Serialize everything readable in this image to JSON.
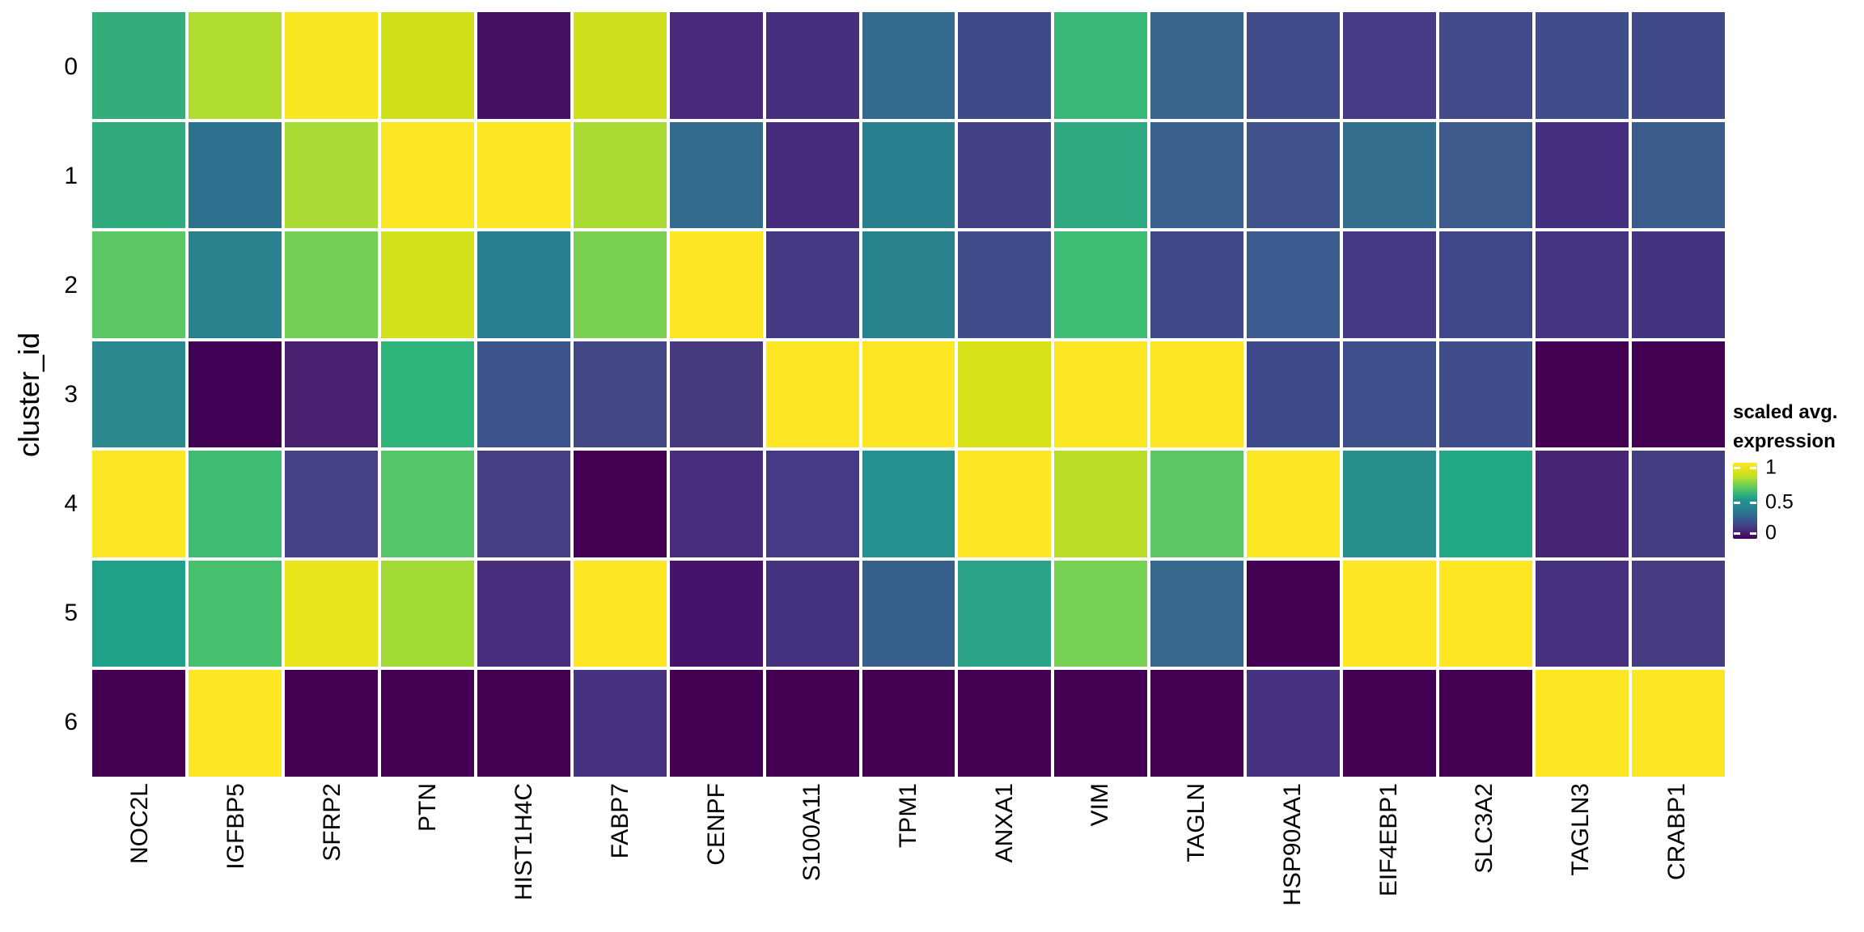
{
  "figure": {
    "background": "#ffffff",
    "type": "heatmap-figure"
  },
  "y_axis": {
    "title": "cluster_id",
    "tick_labels": [
      "0",
      "1",
      "2",
      "3",
      "4",
      "5",
      "6"
    ]
  },
  "x_axis": {
    "tick_labels": [
      "NOC2L",
      "IGFBP5",
      "SFRP2",
      "PTN",
      "HIST1H4C",
      "FABP7",
      "CENPF",
      "S100A11",
      "TPM1",
      "ANXA1",
      "VIM",
      "TAGLN",
      "HSP90AA1",
      "EIF4EBP1",
      "SLC3A2",
      "TAGLN3",
      "CRABP1"
    ]
  },
  "legend": {
    "title_line1": "scaled avg.",
    "title_line2": "expression",
    "ticks": [
      {
        "label": "1",
        "frac_from_top": 0.064
      },
      {
        "label": "0.5",
        "frac_from_top": 0.52
      },
      {
        "label": "0",
        "frac_from_top": 0.925
      }
    ],
    "gradient_stops_bottom_to_top": [
      {
        "t": 0.0,
        "color": "#440154"
      },
      {
        "t": 0.1,
        "color": "#482878"
      },
      {
        "t": 0.2,
        "color": "#3e4989"
      },
      {
        "t": 0.3,
        "color": "#31688e"
      },
      {
        "t": 0.4,
        "color": "#26828e"
      },
      {
        "t": 0.5,
        "color": "#21918c"
      },
      {
        "t": 0.6,
        "color": "#35b779"
      },
      {
        "t": 0.7,
        "color": "#6ece58"
      },
      {
        "t": 0.8,
        "color": "#b5de2b"
      },
      {
        "t": 0.9,
        "color": "#dde319"
      },
      {
        "t": 1.0,
        "color": "#fde725"
      }
    ]
  },
  "chart_data": {
    "type": "heatmap",
    "title": "",
    "xlabel": "",
    "ylabel": "cluster_id",
    "legend_title": "scaled avg. expression",
    "value_range": [
      0,
      1
    ],
    "colormap": "viridis",
    "x_categories": [
      "NOC2L",
      "IGFBP5",
      "SFRP2",
      "PTN",
      "HIST1H4C",
      "FABP7",
      "CENPF",
      "S100A11",
      "TPM1",
      "ANXA1",
      "VIM",
      "TAGLN",
      "HSP90AA1",
      "EIF4EBP1",
      "SLC3A2",
      "TAGLN3",
      "CRABP1"
    ],
    "y_categories": [
      "0",
      "1",
      "2",
      "3",
      "4",
      "5",
      "6"
    ],
    "values": [
      [
        0.58,
        0.8,
        0.97,
        0.87,
        0.03,
        0.86,
        0.11,
        0.12,
        0.34,
        0.21,
        0.6,
        0.31,
        0.22,
        0.16,
        0.21,
        0.23,
        0.21
      ],
      [
        0.57,
        0.35,
        0.78,
        0.99,
        1.0,
        0.78,
        0.34,
        0.11,
        0.39,
        0.18,
        0.55,
        0.3,
        0.24,
        0.36,
        0.28,
        0.11,
        0.29
      ],
      [
        0.68,
        0.4,
        0.72,
        0.88,
        0.39,
        0.73,
        1.0,
        0.16,
        0.4,
        0.22,
        0.62,
        0.21,
        0.28,
        0.16,
        0.2,
        0.13,
        0.13
      ],
      [
        0.42,
        0.0,
        0.08,
        0.58,
        0.25,
        0.19,
        0.15,
        1.0,
        1.0,
        0.9,
        1.0,
        1.0,
        0.2,
        0.23,
        0.22,
        0.0,
        0.0
      ],
      [
        1.0,
        0.62,
        0.18,
        0.66,
        0.17,
        0.0,
        0.11,
        0.17,
        0.47,
        1.0,
        0.82,
        0.68,
        1.0,
        0.44,
        0.52,
        0.09,
        0.17
      ],
      [
        0.52,
        0.64,
        0.93,
        0.77,
        0.11,
        1.0,
        0.05,
        0.13,
        0.31,
        0.53,
        0.73,
        0.33,
        0.0,
        1.0,
        1.0,
        0.12,
        0.16
      ],
      [
        0.0,
        1.0,
        0.0,
        0.0,
        0.0,
        0.12,
        0.0,
        0.0,
        0.0,
        0.0,
        0.0,
        0.0,
        0.12,
        0.0,
        0.0,
        1.0,
        1.0
      ]
    ],
    "cell_colors": [
      [
        "#35ac7c",
        "#b0dd2f",
        "#f8e621",
        "#d0e11c",
        "#451060",
        "#cfe11c",
        "#472a7a",
        "#46307e",
        "#336b8e",
        "#3e4a89",
        "#38b977",
        "#38648e",
        "#414c8a",
        "#453c85",
        "#424a89",
        "#3f4e8a",
        "#414a89"
      ],
      [
        "#31ab7d",
        "#2c728e",
        "#a8db34",
        "#fbe723",
        "#fde725",
        "#a9db33",
        "#336b8e",
        "#462c7c",
        "#2a7f8e",
        "#423f85",
        "#2fa982",
        "#3a608d",
        "#3f528b",
        "#34708d",
        "#3c5a8c",
        "#452f80",
        "#3a5c8d"
      ],
      [
        "#5cc863",
        "#28828d",
        "#74d055",
        "#d2e21b",
        "#2a7f8e",
        "#7ad151",
        "#fde725",
        "#443983",
        "#29838e",
        "#3f4e8a",
        "#3dbc74",
        "#3f4889",
        "#3b5c8f",
        "#443a83",
        "#404688",
        "#463480",
        "#44337e"
      ],
      [
        "#2a898e",
        "#420256",
        "#472070",
        "#2fb47c",
        "#3c538b",
        "#434685",
        "#46397e",
        "#fde725",
        "#fde725",
        "#d8e219",
        "#fde725",
        "#fde725",
        "#3e4989",
        "#3f4f8b",
        "#3f4d8a",
        "#440154",
        "#440154"
      ],
      [
        "#fce724",
        "#3fbc73",
        "#444187",
        "#54c568",
        "#453f84",
        "#440154",
        "#472d7b",
        "#443b84",
        "#259290",
        "#fde725",
        "#bade28",
        "#5cc863",
        "#fde725",
        "#298f8d",
        "#23a884",
        "#482475",
        "#433d84"
      ],
      [
        "#1fa088",
        "#48c16e",
        "#e8e419",
        "#a2db36",
        "#472f7d",
        "#fde725",
        "#46136a",
        "#46337f",
        "#36608b",
        "#2aa286",
        "#77d153",
        "#35688c",
        "#440154",
        "#fde725",
        "#fde725",
        "#46327e",
        "#453c82"
      ],
      [
        "#440154",
        "#fde725",
        "#440154",
        "#440154",
        "#440154",
        "#46327e",
        "#440154",
        "#440154",
        "#440154",
        "#440154",
        "#440154",
        "#440154",
        "#46327e",
        "#440154",
        "#440154",
        "#fde725",
        "#fde725"
      ]
    ]
  }
}
